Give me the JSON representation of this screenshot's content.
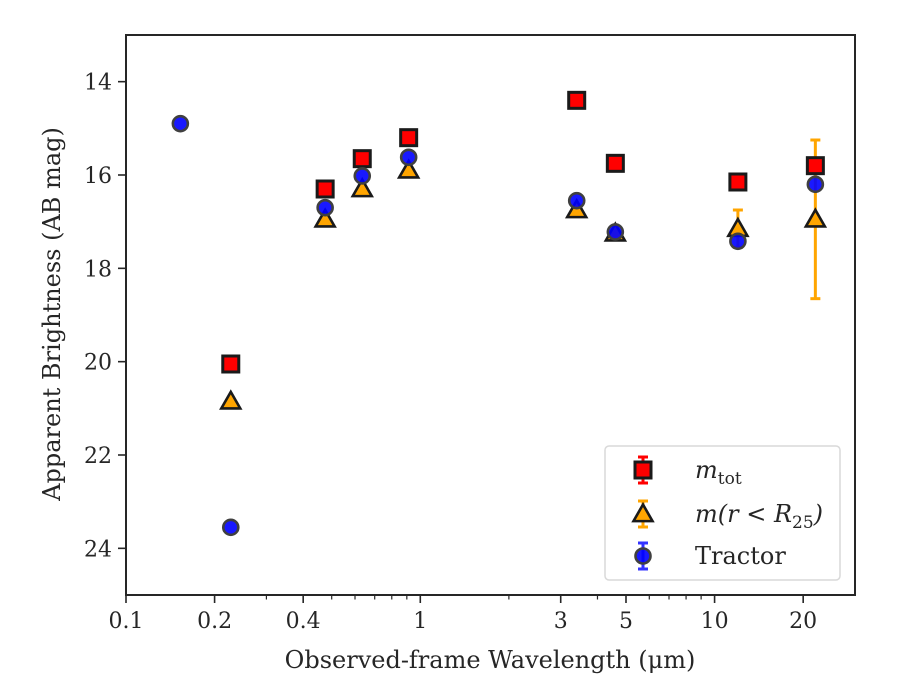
{
  "chart_data": {
    "type": "scatter",
    "title": "",
    "xlabel": "Observed-frame Wavelength (μm)",
    "ylabel": "Apparent Brightness (AB mag)",
    "xscale": "log",
    "xlim": [
      0.1,
      30
    ],
    "ylim": [
      25,
      13
    ],
    "y_inverted": true,
    "x_ticks": [
      0.1,
      0.2,
      0.4,
      1,
      3,
      5,
      10,
      20
    ],
    "x_tick_labels": [
      "0.1",
      "0.2",
      "0.4",
      "1",
      "3",
      "5",
      "10",
      "20"
    ],
    "y_ticks": [
      14,
      16,
      18,
      20,
      22,
      24
    ],
    "y_tick_labels": [
      "14",
      "16",
      "18",
      "20",
      "22",
      "24"
    ],
    "grid": false,
    "legend_position": "lower-right",
    "series": [
      {
        "name": "m_tot",
        "legend_label": {
          "base": "m",
          "sub": "tot"
        },
        "marker": "square",
        "color": "#ff0000",
        "edgecolor": "#1a1a1a",
        "points": [
          {
            "x": 0.227,
            "y": 20.05
          },
          {
            "x": 0.475,
            "y": 16.3
          },
          {
            "x": 0.635,
            "y": 15.65
          },
          {
            "x": 0.913,
            "y": 15.2
          },
          {
            "x": 3.4,
            "y": 14.4
          },
          {
            "x": 4.6,
            "y": 15.75
          },
          {
            "x": 12.0,
            "y": 16.15
          },
          {
            "x": 22.0,
            "y": 15.8
          }
        ]
      },
      {
        "name": "m(r < R25)",
        "legend_label": {
          "base": "m(r < R",
          "sub": "25",
          "suffix": ")"
        },
        "marker": "triangle",
        "color": "#ffa500",
        "edgecolor": "#1a1a1a",
        "points": [
          {
            "x": 0.227,
            "y": 20.85
          },
          {
            "x": 0.475,
            "y": 16.95
          },
          {
            "x": 0.635,
            "y": 16.3
          },
          {
            "x": 0.913,
            "y": 15.9
          },
          {
            "x": 3.4,
            "y": 16.75
          },
          {
            "x": 4.6,
            "y": 17.25
          },
          {
            "x": 12.0,
            "y": 17.15,
            "yerr": 0.4
          },
          {
            "x": 22.0,
            "y": 16.95,
            "yerr_low": 1.7,
            "yerr_high": 1.7
          }
        ]
      },
      {
        "name": "Tractor",
        "marker": "circle",
        "color": "#0000ff",
        "edgecolor": "#404040",
        "points": [
          {
            "x": 0.153,
            "y": 14.9
          },
          {
            "x": 0.227,
            "y": 23.55
          },
          {
            "x": 0.475,
            "y": 16.7
          },
          {
            "x": 0.635,
            "y": 16.02
          },
          {
            "x": 0.913,
            "y": 15.62
          },
          {
            "x": 3.4,
            "y": 16.55
          },
          {
            "x": 4.6,
            "y": 17.22
          },
          {
            "x": 12.0,
            "y": 17.42
          },
          {
            "x": 22.0,
            "y": 16.2
          }
        ]
      }
    ]
  },
  "legend": {
    "entries": [
      {
        "base": "m",
        "sub": "tot",
        "suffix": "",
        "italic": true
      },
      {
        "base": "m(r < R",
        "sub": "25",
        "suffix": ")",
        "italic": true
      },
      {
        "base": "Tractor",
        "sub": "",
        "suffix": "",
        "italic": false
      }
    ]
  }
}
